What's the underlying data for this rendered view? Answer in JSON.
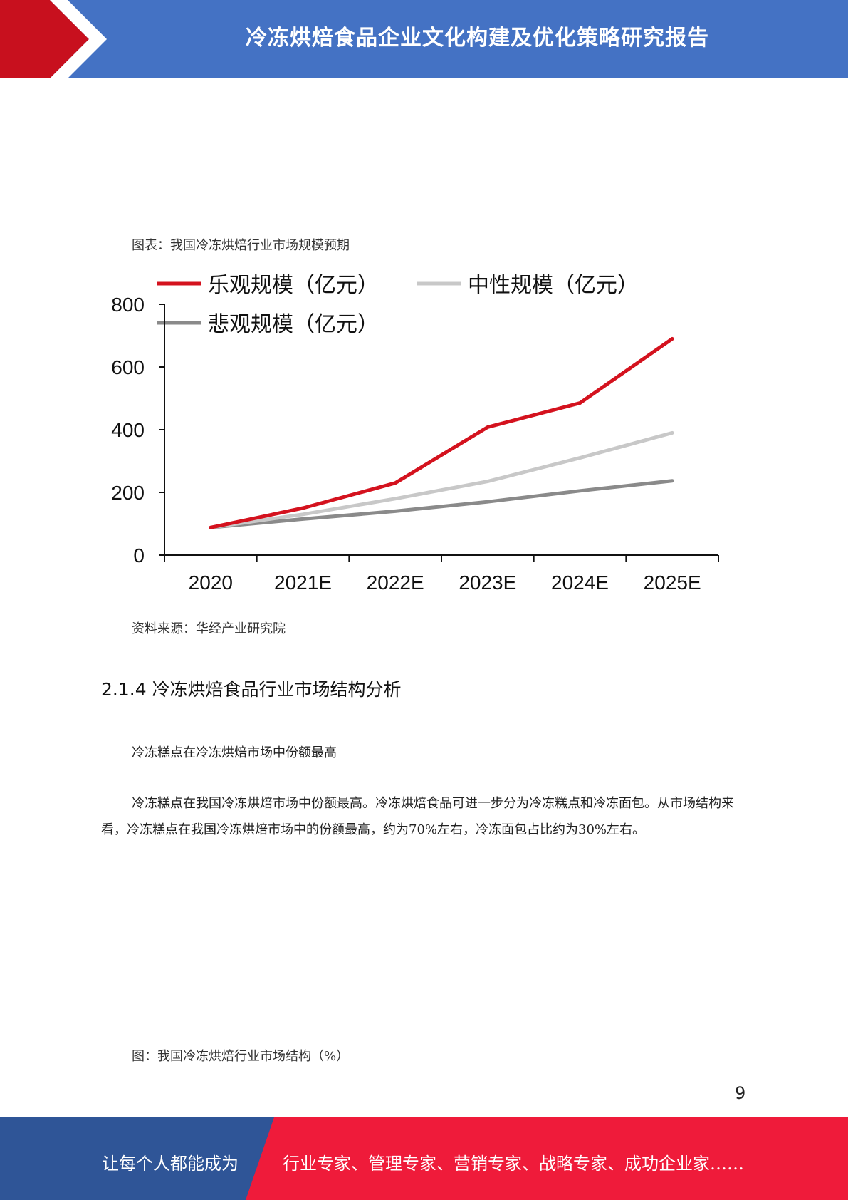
{
  "header": {
    "title": "冷冻烘焙食品企业文化构建及优化策略研究报告"
  },
  "figure1": {
    "caption": "图表：我国冷冻烘焙行业市场规模预期",
    "source": "资料来源：华经产业研究院"
  },
  "chart_data": {
    "type": "line",
    "title": "",
    "xlabel": "",
    "ylabel": "",
    "categories": [
      "2020",
      "2021E",
      "2022E",
      "2023E",
      "2024E",
      "2025E"
    ],
    "ylim": [
      0,
      800
    ],
    "yticks": [
      "0",
      "200",
      "400",
      "600",
      "800"
    ],
    "grid": false,
    "legend_position": "top",
    "series": [
      {
        "name": "乐观规模（亿元）",
        "color": "#d4121e",
        "values": [
          88,
          150,
          230,
          408,
          485,
          690
        ]
      },
      {
        "name": "中性规模（亿元）",
        "color": "#c8c8c8",
        "values": [
          88,
          130,
          180,
          235,
          310,
          390
        ]
      },
      {
        "name": "悲观规模（亿元）",
        "color": "#8a8a8a",
        "values": [
          88,
          115,
          140,
          170,
          205,
          237
        ]
      }
    ]
  },
  "section": {
    "heading": "2.1.4 冷冻烘焙食品行业市场结构分析",
    "subheading": "冷冻糕点在冷冻烘焙市场中份额最高",
    "paragraph": "冷冻糕点在我国冷冻烘焙市场中份额最高。冷冻烘焙食品可进一步分为冷冻糕点和冷冻面包。从市场结构来看，冷冻糕点在我国冷冻烘焙市场中的份额最高，约为70%左右，冷冻面包占比约为30%左右。"
  },
  "figure2": {
    "caption": "图：我国冷冻烘焙行业市场结构（%）"
  },
  "page_number": "9",
  "footer": {
    "left": "让每个人都能成为",
    "right": "行业专家、管理专家、营销专家、战略专家、成功企业家……"
  }
}
